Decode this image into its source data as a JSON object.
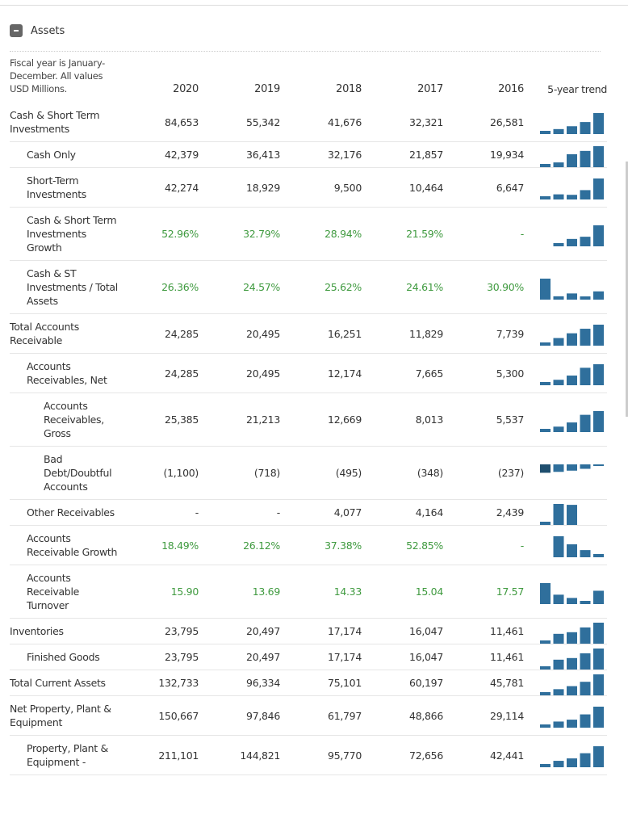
{
  "section": {
    "title": "Assets"
  },
  "table": {
    "note": "Fiscal year is January-December. All values USD Millions.",
    "columns": [
      "2020",
      "2019",
      "2018",
      "2017",
      "2016"
    ],
    "trend_header": "5-year trend",
    "rows": [
      {
        "label": "Cash & Short Term Investments",
        "values": [
          "84,653",
          "55,342",
          "41,676",
          "32,321",
          "26,581"
        ]
      },
      {
        "label": "Cash Only",
        "values": [
          "42,379",
          "36,413",
          "32,176",
          "21,857",
          "19,934"
        ]
      },
      {
        "label": "Short-Term Investments",
        "values": [
          "42,274",
          "18,929",
          "9,500",
          "10,464",
          "6,647"
        ]
      },
      {
        "label": "Cash & Short Term Investments Growth",
        "values": [
          "52.96%",
          "32.79%",
          "28.94%",
          "21.59%",
          "-"
        ]
      },
      {
        "label": "Cash & ST Investments / Total Assets",
        "values": [
          "26.36%",
          "24.57%",
          "25.62%",
          "24.61%",
          "30.90%"
        ]
      },
      {
        "label": "Total Accounts Receivable",
        "values": [
          "24,285",
          "20,495",
          "16,251",
          "11,829",
          "7,739"
        ]
      },
      {
        "label": "Accounts Receivables, Net",
        "values": [
          "24,285",
          "20,495",
          "12,174",
          "7,665",
          "5,300"
        ]
      },
      {
        "label": "Accounts Receivables, Gross",
        "values": [
          "25,385",
          "21,213",
          "12,669",
          "8,013",
          "5,537"
        ]
      },
      {
        "label": "Bad Debt/Doubtful Accounts",
        "values": [
          "(1,100)",
          "(718)",
          "(495)",
          "(348)",
          "(237)"
        ]
      },
      {
        "label": "Other Receivables",
        "values": [
          "-",
          "-",
          "4,077",
          "4,164",
          "2,439"
        ]
      },
      {
        "label": "Accounts Receivable Growth",
        "values": [
          "18.49%",
          "26.12%",
          "37.38%",
          "52.85%",
          "-"
        ]
      },
      {
        "label": "Accounts Receivable Turnover",
        "values": [
          "15.90",
          "13.69",
          "14.33",
          "15.04",
          "17.57"
        ]
      },
      {
        "label": "Inventories",
        "values": [
          "23,795",
          "20,497",
          "17,174",
          "16,047",
          "11,461"
        ]
      },
      {
        "label": "Finished Goods",
        "values": [
          "23,795",
          "20,497",
          "17,174",
          "16,047",
          "11,461"
        ]
      },
      {
        "label": "Total Current Assets",
        "values": [
          "132,733",
          "96,334",
          "75,101",
          "60,197",
          "45,781"
        ]
      },
      {
        "label": "Net Property, Plant & Equipment",
        "values": [
          "150,667",
          "97,846",
          "61,797",
          "48,866",
          "29,114"
        ]
      },
      {
        "label": "Property, Plant & Equipment -",
        "values": [
          "211,101",
          "144,821",
          "95,770",
          "72,656",
          "42,441"
        ]
      }
    ]
  }
}
